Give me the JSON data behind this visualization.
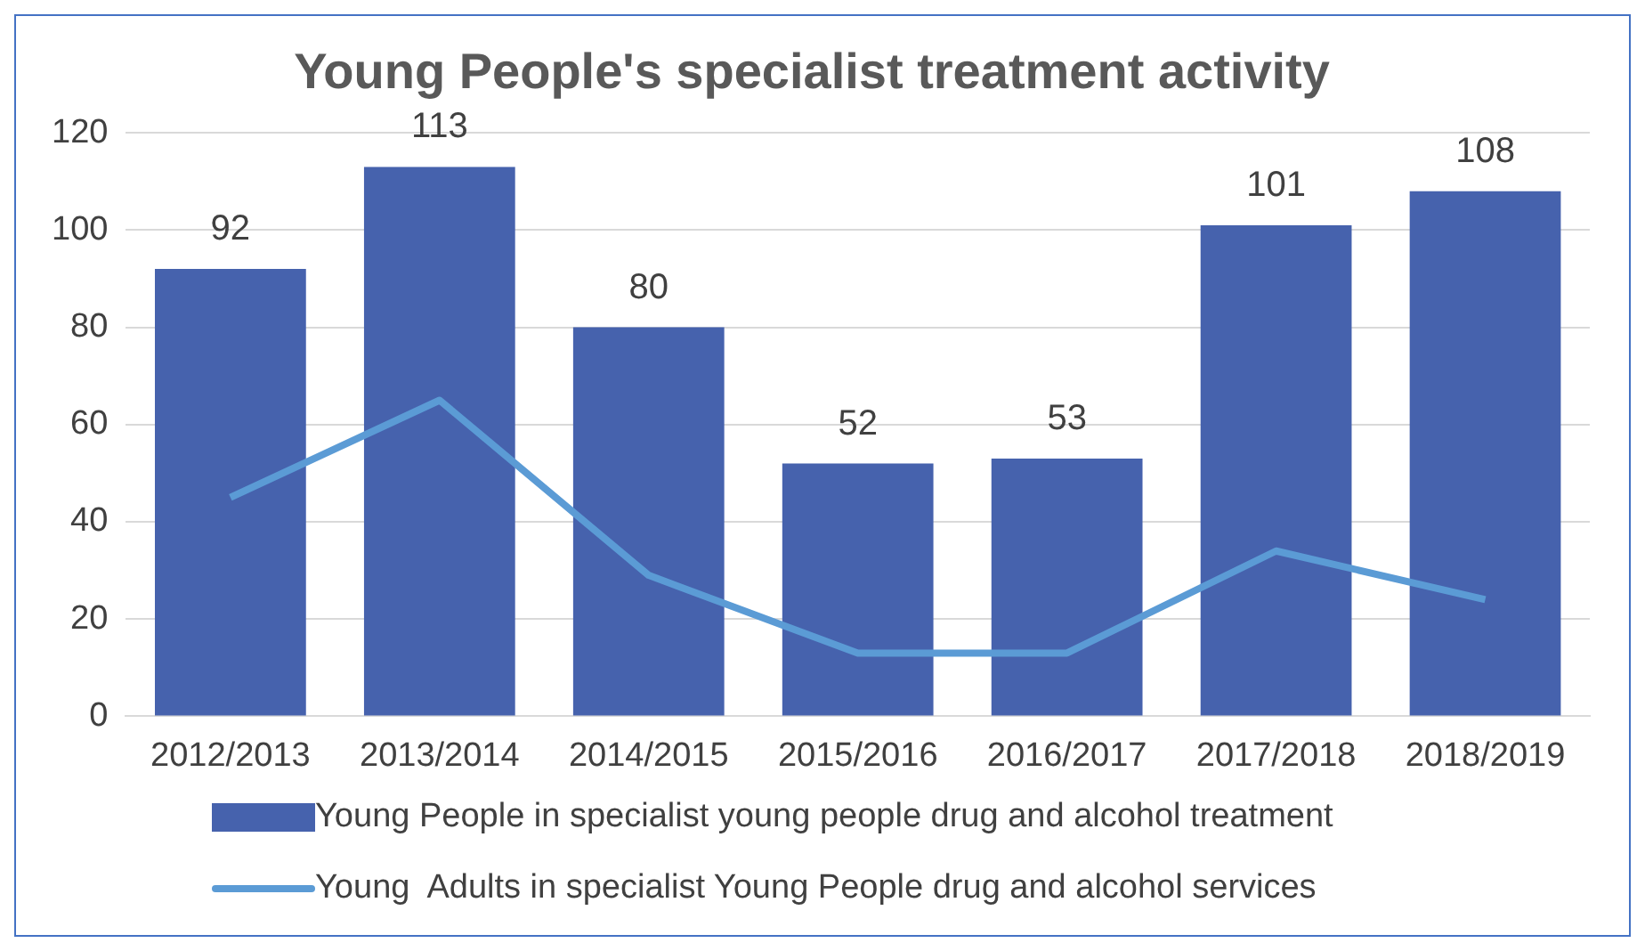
{
  "chart_data": {
    "type": "bar",
    "title": "Young People's specialist treatment activity",
    "categories": [
      "2012/2013",
      "2013/2014",
      "2014/2015",
      "2015/2016",
      "2016/2017",
      "2017/2018",
      "2018/2019"
    ],
    "series": [
      {
        "name": "Young People in specialist young people drug and alcohol treatment",
        "color": "#4662ad",
        "values": [
          92,
          113,
          80,
          52,
          53,
          101,
          108
        ],
        "data_labels": true
      },
      {
        "name": "Young  Adults in specialist Young People drug and alcohol services",
        "type": "line",
        "color": "#5b9bd5",
        "values": [
          45,
          65,
          29,
          13,
          13,
          34,
          24
        ],
        "marker": "none"
      }
    ],
    "ylim": [
      0,
      120
    ],
    "yticks": [
      0,
      20,
      40,
      60,
      80,
      100,
      120
    ],
    "grid": "y",
    "legend": "bottom"
  }
}
